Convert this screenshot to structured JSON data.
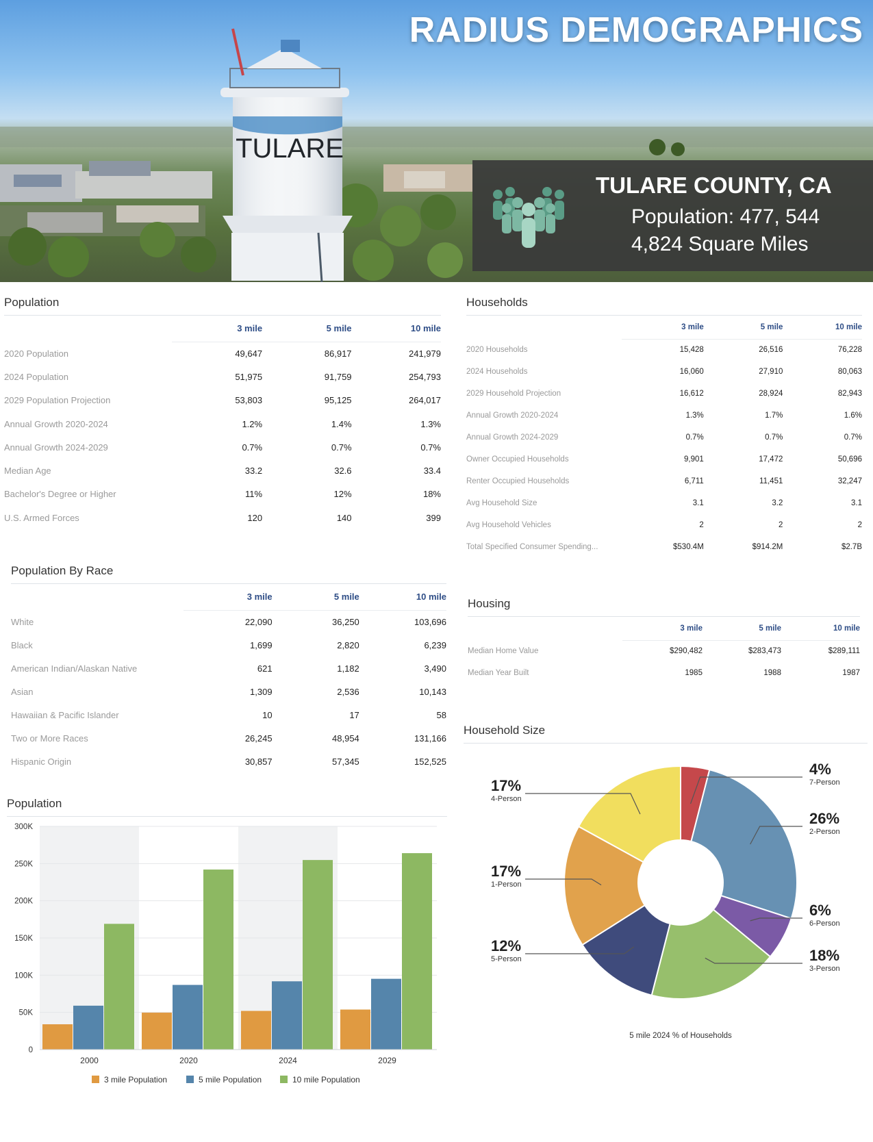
{
  "hero": {
    "title": "RADIUS DEMOGRAPHICS",
    "tower_text": "TULARE",
    "county": "TULARE COUNTY, CA",
    "population": "Population: 477, 544",
    "area": "4,824 Square Miles"
  },
  "columns": [
    "3 mile",
    "5 mile",
    "10 mile"
  ],
  "population_table": {
    "title": "Population",
    "rows": [
      {
        "label": "2020 Population",
        "values": [
          "49,647",
          "86,917",
          "241,979"
        ]
      },
      {
        "label": "2024 Population",
        "values": [
          "51,975",
          "91,759",
          "254,793"
        ]
      },
      {
        "label": "2029 Population Projection",
        "values": [
          "53,803",
          "95,125",
          "264,017"
        ]
      },
      {
        "label": "Annual Growth 2020-2024",
        "values": [
          "1.2%",
          "1.4%",
          "1.3%"
        ]
      },
      {
        "label": "Annual Growth 2024-2029",
        "values": [
          "0.7%",
          "0.7%",
          "0.7%"
        ]
      },
      {
        "label": "Median Age",
        "values": [
          "33.2",
          "32.6",
          "33.4"
        ]
      },
      {
        "label": "Bachelor's Degree or Higher",
        "values": [
          "11%",
          "12%",
          "18%"
        ]
      },
      {
        "label": "U.S. Armed Forces",
        "values": [
          "120",
          "140",
          "399"
        ]
      }
    ]
  },
  "households_table": {
    "title": "Households",
    "rows": [
      {
        "label": "2020 Households",
        "values": [
          "15,428",
          "26,516",
          "76,228"
        ]
      },
      {
        "label": "2024 Households",
        "values": [
          "16,060",
          "27,910",
          "80,063"
        ]
      },
      {
        "label": "2029 Household Projection",
        "values": [
          "16,612",
          "28,924",
          "82,943"
        ]
      },
      {
        "label": "Annual Growth 2020-2024",
        "values": [
          "1.3%",
          "1.7%",
          "1.6%"
        ]
      },
      {
        "label": "Annual Growth 2024-2029",
        "values": [
          "0.7%",
          "0.7%",
          "0.7%"
        ]
      },
      {
        "label": "Owner Occupied Households",
        "values": [
          "9,901",
          "17,472",
          "50,696"
        ]
      },
      {
        "label": "Renter Occupied Households",
        "values": [
          "6,711",
          "11,451",
          "32,247"
        ]
      },
      {
        "label": "Avg Household Size",
        "values": [
          "3.1",
          "3.2",
          "3.1"
        ]
      },
      {
        "label": "Avg Household Vehicles",
        "values": [
          "2",
          "2",
          "2"
        ]
      },
      {
        "label": "Total Specified Consumer Spending...",
        "values": [
          "$530.4M",
          "$914.2M",
          "$2.7B"
        ]
      }
    ]
  },
  "race_table": {
    "title": "Population By Race",
    "rows": [
      {
        "label": "White",
        "values": [
          "22,090",
          "36,250",
          "103,696"
        ]
      },
      {
        "label": "Black",
        "values": [
          "1,699",
          "2,820",
          "6,239"
        ]
      },
      {
        "label": "American Indian/Alaskan Native",
        "values": [
          "621",
          "1,182",
          "3,490"
        ]
      },
      {
        "label": "Asian",
        "values": [
          "1,309",
          "2,536",
          "10,143"
        ]
      },
      {
        "label": "Hawaiian & Pacific Islander",
        "values": [
          "10",
          "17",
          "58"
        ]
      },
      {
        "label": "Two or More Races",
        "values": [
          "26,245",
          "48,954",
          "131,166"
        ]
      },
      {
        "label": "Hispanic Origin",
        "values": [
          "30,857",
          "57,345",
          "152,525"
        ]
      }
    ]
  },
  "housing_table": {
    "title": "Housing",
    "rows": [
      {
        "label": "Median Home Value",
        "values": [
          "$290,482",
          "$283,473",
          "$289,111"
        ]
      },
      {
        "label": "Median Year Built",
        "values": [
          "1985",
          "1988",
          "1987"
        ]
      }
    ]
  },
  "chart_data": [
    {
      "type": "bar",
      "title": "Population",
      "categories": [
        "2000",
        "2020",
        "2024",
        "2029"
      ],
      "series": [
        {
          "name": "3 mile Population",
          "color": "#e09a41",
          "values": [
            34000,
            49647,
            51975,
            53803
          ]
        },
        {
          "name": "5 mile Population",
          "color": "#5585ab",
          "values": [
            59000,
            86917,
            91759,
            95125
          ]
        },
        {
          "name": "10 mile Population",
          "color": "#8db862",
          "values": [
            169000,
            241979,
            254793,
            264017
          ]
        }
      ],
      "yticks": [
        "0",
        "50K",
        "100K",
        "150K",
        "200K",
        "250K",
        "300K"
      ],
      "ylim": [
        0,
        300000
      ],
      "legend": "bottom"
    },
    {
      "type": "pie",
      "title": "Household Size",
      "caption": "5 mile 2024 % of Households",
      "slices": [
        {
          "label": "7-Person",
          "pct": "4%",
          "value": 4,
          "color": "#c5484b"
        },
        {
          "label": "2-Person",
          "pct": "26%",
          "value": 26,
          "color": "#6791b3"
        },
        {
          "label": "6-Person",
          "pct": "6%",
          "value": 6,
          "color": "#7b5aa6"
        },
        {
          "label": "3-Person",
          "pct": "18%",
          "value": 18,
          "color": "#97bf6c"
        },
        {
          "label": "5-Person",
          "pct": "12%",
          "value": 12,
          "color": "#3f4b7c"
        },
        {
          "label": "1-Person",
          "pct": "17%",
          "value": 17,
          "color": "#e1a24c"
        },
        {
          "label": "4-Person",
          "pct": "17%",
          "value": 17,
          "color": "#f1de5e"
        }
      ]
    }
  ]
}
